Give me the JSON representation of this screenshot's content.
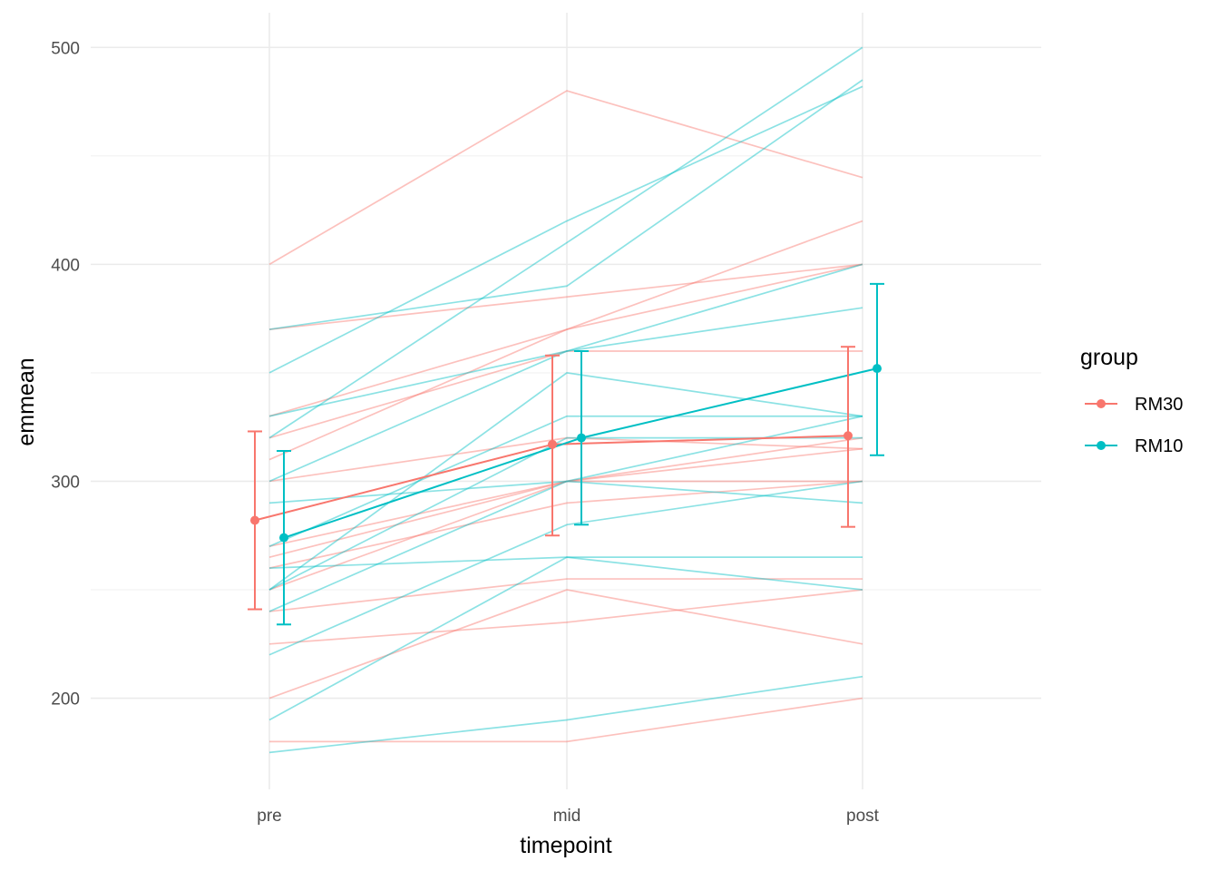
{
  "chart_data": {
    "type": "line",
    "categories": [
      "pre",
      "mid",
      "post"
    ],
    "xlabel": "timepoint",
    "ylabel": "emmean",
    "y_ticks": [
      200,
      300,
      400,
      500
    ],
    "ylim": [
      158,
      516
    ],
    "grid": true,
    "legend": {
      "title": "group",
      "placement": "right",
      "entries": [
        "RM30",
        "RM10"
      ]
    },
    "colors": {
      "RM30": "#F8766D",
      "RM10": "#00BFC4"
    },
    "series": [
      {
        "name": "RM30",
        "values": [
          282,
          317,
          321
        ],
        "ci_lower": [
          241,
          275,
          279
        ],
        "ci_upper": [
          323,
          358,
          362
        ]
      },
      {
        "name": "RM10",
        "values": [
          274,
          320,
          352
        ],
        "ci_lower": [
          234,
          280,
          312
        ],
        "ci_upper": [
          314,
          360,
          391
        ]
      }
    ],
    "individual_lines": [
      {
        "group": "RM30",
        "values": [
          400,
          480,
          440
        ]
      },
      {
        "group": "RM30",
        "values": [
          370,
          385,
          400
        ]
      },
      {
        "group": "RM30",
        "values": [
          330,
          370,
          420
        ]
      },
      {
        "group": "RM30",
        "values": [
          320,
          360,
          360
        ]
      },
      {
        "group": "RM30",
        "values": [
          310,
          370,
          400
        ]
      },
      {
        "group": "RM30",
        "values": [
          300,
          320,
          315
        ]
      },
      {
        "group": "RM30",
        "values": [
          270,
          300,
          300
        ]
      },
      {
        "group": "RM30",
        "values": [
          265,
          300,
          320
        ]
      },
      {
        "group": "RM30",
        "values": [
          260,
          290,
          300
        ]
      },
      {
        "group": "RM30",
        "values": [
          250,
          300,
          315
        ]
      },
      {
        "group": "RM30",
        "values": [
          240,
          255,
          255
        ]
      },
      {
        "group": "RM30",
        "values": [
          225,
          235,
          250
        ]
      },
      {
        "group": "RM30",
        "values": [
          200,
          250,
          225
        ]
      },
      {
        "group": "RM30",
        "values": [
          180,
          180,
          200
        ]
      },
      {
        "group": "RM10",
        "values": [
          370,
          390,
          485
        ]
      },
      {
        "group": "RM10",
        "values": [
          350,
          420,
          482
        ]
      },
      {
        "group": "RM10",
        "values": [
          330,
          360,
          400
        ]
      },
      {
        "group": "RM10",
        "values": [
          320,
          410,
          500
        ]
      },
      {
        "group": "RM10",
        "values": [
          300,
          360,
          380
        ]
      },
      {
        "group": "RM10",
        "values": [
          290,
          300,
          290
        ]
      },
      {
        "group": "RM10",
        "values": [
          270,
          330,
          330
        ]
      },
      {
        "group": "RM10",
        "values": [
          260,
          265,
          265
        ]
      },
      {
        "group": "RM10",
        "values": [
          250,
          320,
          320
        ]
      },
      {
        "group": "RM10",
        "values": [
          240,
          300,
          330
        ]
      },
      {
        "group": "RM10",
        "values": [
          220,
          280,
          300
        ]
      },
      {
        "group": "RM10",
        "values": [
          250,
          350,
          330
        ]
      },
      {
        "group": "RM10",
        "values": [
          190,
          265,
          250
        ]
      },
      {
        "group": "RM10",
        "values": [
          175,
          190,
          210
        ]
      }
    ]
  }
}
